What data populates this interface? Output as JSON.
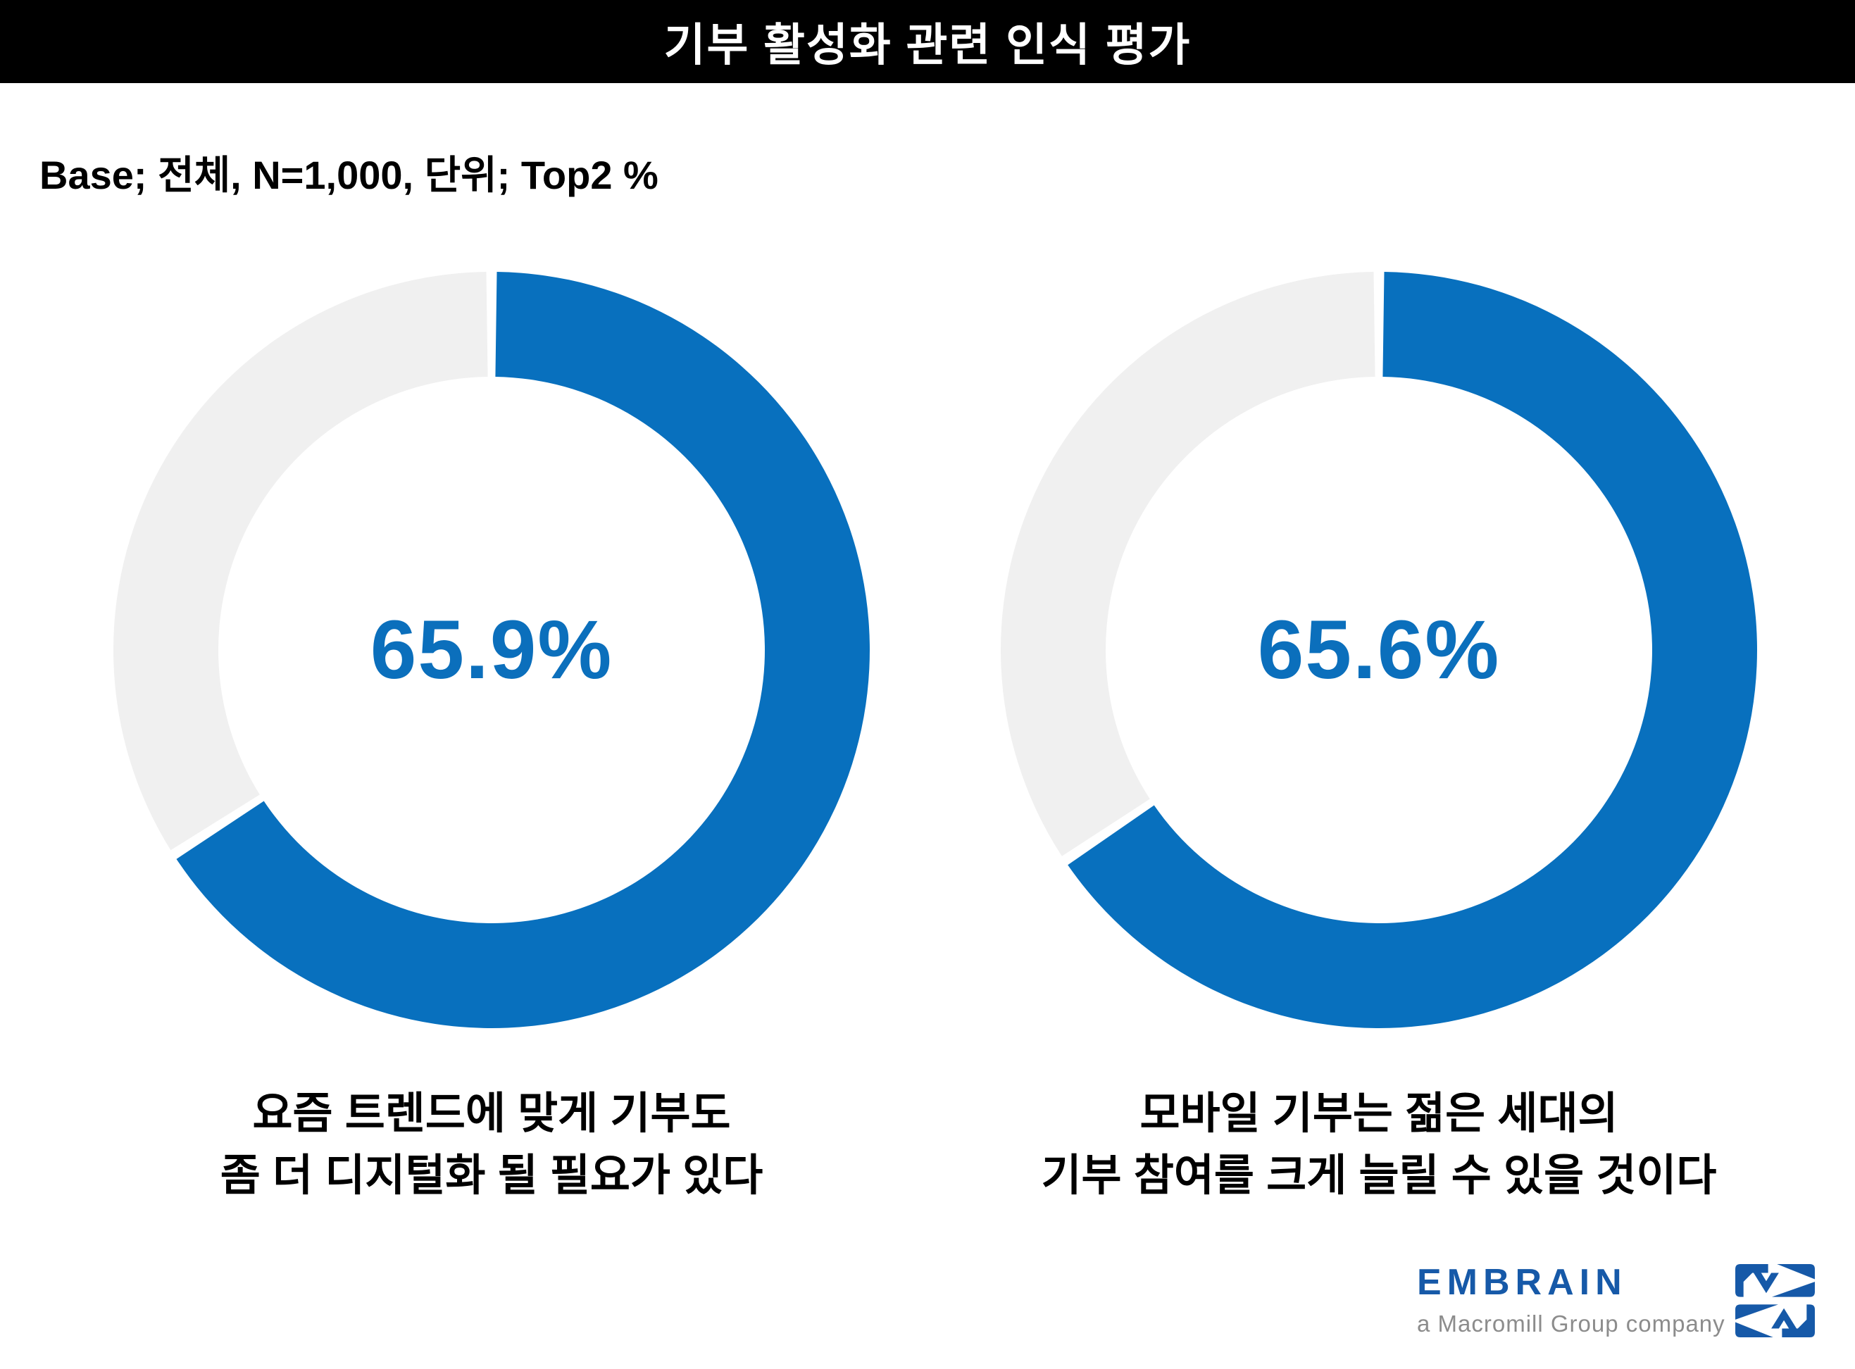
{
  "slide": {
    "title": "기부 활성화 관련 인식 평가",
    "base_note": "Base; 전체, N=1,000, 단위; Top2 %"
  },
  "chart_data": {
    "type": "pie",
    "subtype": "paired-donut",
    "base": "전체, N=1,000",
    "unit": "Top2 %",
    "start_angle_deg": 0,
    "direction": "clockwise",
    "legend": "none",
    "colors": {
      "value": "#0870BE",
      "track": "#F0F0F0",
      "value_text": "#0B6FBC"
    },
    "donuts": [
      {
        "value": 65.9,
        "remainder": 34.1,
        "value_label": "65.9%",
        "caption_lines": [
          "요즘 트렌드에 맞게 기부도",
          "좀 더 디지털화 될 필요가 있다"
        ]
      },
      {
        "value": 65.6,
        "remainder": 34.4,
        "value_label": "65.6%",
        "caption_lines": [
          "모바일 기부는 젊은 세대의",
          "기부 참여를 크게 늘릴 수 있을 것이다"
        ]
      }
    ]
  },
  "logo": {
    "wordmark": "EMBRAIN",
    "tagline": "a Macromill Group company",
    "wordmark_color": "#1659A8",
    "tagline_color": "#8C8C8C",
    "mark_color": "#1659A8"
  }
}
